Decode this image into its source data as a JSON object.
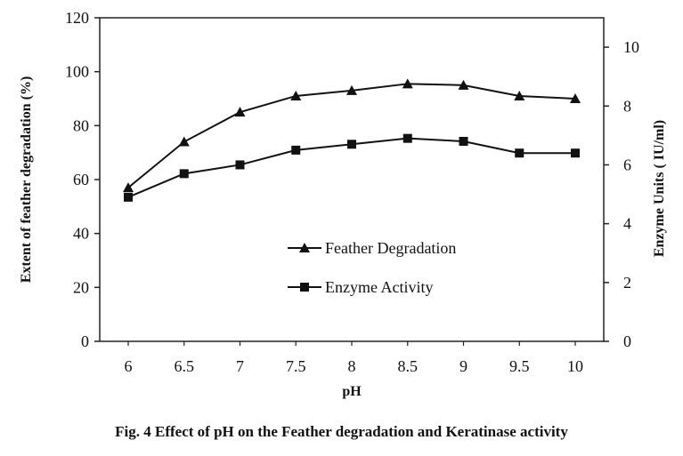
{
  "chart_data": {
    "type": "line",
    "categories": [
      "6",
      "6.5",
      "7",
      "7.5",
      "8",
      "8.5",
      "9",
      "9.5",
      "10"
    ],
    "x": [
      6,
      6.5,
      7,
      7.5,
      8,
      8.5,
      9,
      9.5,
      10
    ],
    "series": [
      {
        "name": "Feather Degradation",
        "axis": "left",
        "marker": "triangle",
        "values": [
          57,
          74,
          85,
          91,
          93,
          95.5,
          95,
          91,
          90
        ]
      },
      {
        "name": "Enzyme Activity",
        "axis": "right",
        "marker": "square",
        "values": [
          4.9,
          5.7,
          6.0,
          6.5,
          6.7,
          6.9,
          6.8,
          6.4,
          6.4
        ]
      }
    ],
    "xlabel": "pH",
    "ylabel_left": "Extent of feather degradation (%)",
    "ylabel_right": "Enzyme Units ( IU/ml)",
    "ylim_left": [
      0,
      120
    ],
    "yticks_left": [
      0,
      20,
      40,
      60,
      80,
      100,
      120
    ],
    "ylim_right": [
      0,
      11
    ],
    "yticks_right": [
      0,
      2,
      4,
      6,
      8,
      10
    ],
    "grid": false,
    "legend_position": "center-right"
  },
  "caption": "Fig. 4 Effect of pH on the Feather degradation and Keratinase activity"
}
